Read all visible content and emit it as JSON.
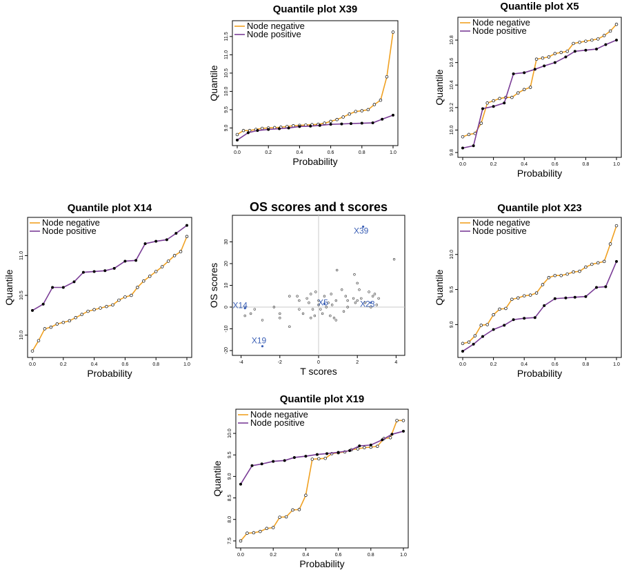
{
  "colors": {
    "negative": "#f0a020",
    "positive": "#7a3c96",
    "os_label": "#3a5fb5",
    "frame": "#000000"
  },
  "chart_data": [
    {
      "id": "X39",
      "type": "line",
      "title": "Quantile plot X39",
      "xlabel": "Probability",
      "ylabel": "Quantile",
      "xlim": [
        0,
        1
      ],
      "ylim": [
        8.65,
        11.8
      ],
      "xticks": [
        "0.0",
        "0.2",
        "0.4",
        "0.6",
        "0.8",
        "1.0"
      ],
      "yticks": [
        "9.0",
        "9.5",
        "10.0",
        "10.5",
        "11.0",
        "11.5"
      ],
      "legend": [
        "Node negative",
        "Node positive"
      ],
      "legend_position": "top-left",
      "series": [
        {
          "name": "Node negative",
          "x": [
            0.0,
            0.04,
            0.08,
            0.12,
            0.16,
            0.2,
            0.24,
            0.28,
            0.32,
            0.36,
            0.4,
            0.44,
            0.48,
            0.52,
            0.56,
            0.6,
            0.64,
            0.68,
            0.72,
            0.76,
            0.8,
            0.84,
            0.88,
            0.92,
            0.96,
            1.0
          ],
          "values": [
            8.82,
            8.93,
            8.93,
            8.96,
            8.99,
            9.0,
            9.01,
            9.02,
            9.04,
            9.06,
            9.07,
            9.08,
            9.09,
            9.1,
            9.13,
            9.18,
            9.23,
            9.3,
            9.38,
            9.45,
            9.47,
            9.5,
            9.64,
            9.76,
            10.4,
            11.62
          ]
        },
        {
          "name": "Node positive",
          "x": [
            0.0,
            0.07,
            0.13,
            0.2,
            0.27,
            0.33,
            0.4,
            0.47,
            0.53,
            0.6,
            0.67,
            0.73,
            0.8,
            0.87,
            0.93,
            1.0
          ],
          "values": [
            8.67,
            8.87,
            8.93,
            8.96,
            8.98,
            9.0,
            9.04,
            9.05,
            9.07,
            9.1,
            9.11,
            9.12,
            9.13,
            9.14,
            9.24,
            9.35
          ]
        }
      ]
    },
    {
      "id": "X5",
      "type": "line",
      "title": "Quantile plot X5",
      "xlabel": "Probability",
      "ylabel": "Quantile",
      "xlim": [
        0,
        1
      ],
      "ylim": [
        9.8,
        10.96
      ],
      "xticks": [
        "0.0",
        "0.2",
        "0.4",
        "0.6",
        "0.8",
        "1.0"
      ],
      "yticks": [
        "9.8",
        "10.0",
        "10.2",
        "10.4",
        "10.6",
        "10.8"
      ],
      "legend": [
        "Node negative",
        "Node positive"
      ],
      "legend_position": "top-left",
      "series": [
        {
          "name": "Node negative",
          "x": [
            0.0,
            0.04,
            0.08,
            0.12,
            0.16,
            0.2,
            0.24,
            0.28,
            0.32,
            0.36,
            0.4,
            0.44,
            0.48,
            0.52,
            0.56,
            0.6,
            0.64,
            0.68,
            0.72,
            0.76,
            0.8,
            0.84,
            0.88,
            0.92,
            0.96,
            1.0
          ],
          "values": [
            9.94,
            9.96,
            9.97,
            10.06,
            10.24,
            10.26,
            10.28,
            10.29,
            10.29,
            10.33,
            10.36,
            10.38,
            10.63,
            10.64,
            10.65,
            10.68,
            10.69,
            10.7,
            10.77,
            10.78,
            10.79,
            10.8,
            10.81,
            10.84,
            10.88,
            10.94
          ]
        },
        {
          "name": "Node positive",
          "x": [
            0.0,
            0.07,
            0.13,
            0.2,
            0.27,
            0.33,
            0.4,
            0.47,
            0.53,
            0.6,
            0.67,
            0.73,
            0.8,
            0.87,
            0.93,
            1.0
          ],
          "values": [
            9.84,
            9.86,
            10.19,
            10.21,
            10.24,
            10.5,
            10.51,
            10.54,
            10.57,
            10.6,
            10.65,
            10.7,
            10.71,
            10.72,
            10.76,
            10.8
          ]
        }
      ]
    },
    {
      "id": "X14",
      "type": "line",
      "title": "Quantile plot X14",
      "xlabel": "Probability",
      "ylabel": "Quantile",
      "xlim": [
        0,
        1
      ],
      "ylim": [
        9.78,
        11.42
      ],
      "xticks": [
        "0.0",
        "0.2",
        "0.4",
        "0.6",
        "0.8",
        "1.0"
      ],
      "yticks": [
        "10.0",
        "10.5",
        "11.0"
      ],
      "legend": [
        "Node negative",
        "Node positive"
      ],
      "legend_position": "top-left",
      "series": [
        {
          "name": "Node negative",
          "x": [
            0.0,
            0.04,
            0.08,
            0.12,
            0.16,
            0.2,
            0.24,
            0.28,
            0.32,
            0.36,
            0.4,
            0.44,
            0.48,
            0.52,
            0.56,
            0.6,
            0.64,
            0.68,
            0.72,
            0.76,
            0.8,
            0.84,
            0.88,
            0.92,
            0.96,
            1.0
          ],
          "values": [
            9.8,
            9.93,
            10.08,
            10.1,
            10.14,
            10.16,
            10.18,
            10.22,
            10.26,
            10.3,
            10.32,
            10.34,
            10.36,
            10.38,
            10.44,
            10.48,
            10.5,
            10.6,
            10.68,
            10.74,
            10.8,
            10.86,
            10.93,
            11.0,
            11.05,
            11.24
          ]
        },
        {
          "name": "Node positive",
          "x": [
            0.0,
            0.07,
            0.13,
            0.2,
            0.27,
            0.33,
            0.4,
            0.47,
            0.53,
            0.6,
            0.67,
            0.73,
            0.8,
            0.87,
            0.93,
            1.0
          ],
          "values": [
            10.31,
            10.39,
            10.6,
            10.6,
            10.67,
            10.79,
            10.8,
            10.81,
            10.84,
            10.93,
            10.94,
            11.15,
            11.18,
            11.2,
            11.28,
            11.38
          ]
        }
      ]
    },
    {
      "id": "OS",
      "type": "scatter",
      "title": "OS scores and t scores",
      "xlabel": "T scores",
      "ylabel": "OS scores",
      "xlim": [
        -4.2,
        4.2
      ],
      "ylim": [
        -20,
        40
      ],
      "xticks": [
        "-4",
        "-2",
        "0",
        "2",
        "4"
      ],
      "yticks": [
        "-20",
        "-10",
        "0",
        "10",
        "20",
        "30"
      ],
      "reference_lines": {
        "x": 0,
        "y": 0
      },
      "labeled_points": [
        {
          "label": "X39",
          "x": 2.3,
          "y": 37
        },
        {
          "label": "X5",
          "x": 0.3,
          "y": 1.5
        },
        {
          "label": "X14",
          "x": -3.8,
          "y": -0.5
        },
        {
          "label": "X23",
          "x": 2.7,
          "y": 2
        },
        {
          "label": "X19",
          "x": -2.9,
          "y": -18
        }
      ],
      "points": [
        [
          -3.8,
          -4
        ],
        [
          -3.5,
          -3
        ],
        [
          -3.3,
          -1
        ],
        [
          -2.9,
          -6
        ],
        [
          -2.3,
          0
        ],
        [
          -2.0,
          -3
        ],
        [
          -2.0,
          -5
        ],
        [
          -1.5,
          -9
        ],
        [
          -1.5,
          5
        ],
        [
          -1.1,
          5
        ],
        [
          -1.0,
          3
        ],
        [
          -1.0,
          -1
        ],
        [
          -0.8,
          -3
        ],
        [
          -0.6,
          4
        ],
        [
          -0.5,
          2
        ],
        [
          -0.4,
          -5
        ],
        [
          -0.4,
          6
        ],
        [
          -0.3,
          -1
        ],
        [
          -0.2,
          -4
        ],
        [
          -0.15,
          7
        ],
        [
          0.0,
          1
        ],
        [
          0.0,
          3
        ],
        [
          0.1,
          -1
        ],
        [
          0.2,
          -3
        ],
        [
          0.3,
          5
        ],
        [
          0.4,
          0
        ],
        [
          0.5,
          2
        ],
        [
          0.6,
          -4
        ],
        [
          0.65,
          6
        ],
        [
          0.7,
          1
        ],
        [
          0.8,
          -5
        ],
        [
          0.9,
          -6
        ],
        [
          0.9,
          3
        ],
        [
          0.95,
          17
        ],
        [
          1.2,
          8
        ],
        [
          1.3,
          -2
        ],
        [
          1.4,
          5
        ],
        [
          1.5,
          3
        ],
        [
          1.5,
          0
        ],
        [
          1.8,
          4
        ],
        [
          1.85,
          15
        ],
        [
          1.9,
          2
        ],
        [
          2.0,
          11
        ],
        [
          2.0,
          3
        ],
        [
          2.1,
          8
        ],
        [
          2.2,
          4
        ],
        [
          2.4,
          2
        ],
        [
          2.6,
          7
        ],
        [
          2.7,
          0
        ],
        [
          2.8,
          5
        ],
        [
          2.9,
          6
        ],
        [
          3.0,
          1
        ],
        [
          3.1,
          4
        ],
        [
          3.9,
          22
        ]
      ]
    },
    {
      "id": "X23",
      "type": "line",
      "title": "Quantile plot X23",
      "xlabel": "Probability",
      "ylabel": "Quantile",
      "xlim": [
        0,
        1
      ],
      "ylim": [
        8.6,
        10.46
      ],
      "xticks": [
        "0.0",
        "0.2",
        "0.4",
        "0.6",
        "0.8",
        "1.0"
      ],
      "yticks": [
        "9.0",
        "9.5",
        "10.0"
      ],
      "legend": [
        "Node negative",
        "Node positive"
      ],
      "legend_position": "top-left",
      "series": [
        {
          "name": "Node negative",
          "x": [
            0.0,
            0.04,
            0.08,
            0.12,
            0.16,
            0.2,
            0.24,
            0.28,
            0.32,
            0.36,
            0.4,
            0.44,
            0.48,
            0.52,
            0.56,
            0.6,
            0.64,
            0.68,
            0.72,
            0.76,
            0.8,
            0.84,
            0.88,
            0.92,
            0.96,
            1.0
          ],
          "values": [
            8.73,
            8.75,
            8.84,
            8.99,
            9.0,
            9.14,
            9.22,
            9.23,
            9.36,
            9.38,
            9.41,
            9.42,
            9.45,
            9.57,
            9.67,
            9.7,
            9.7,
            9.72,
            9.75,
            9.76,
            9.82,
            9.86,
            9.88,
            9.9,
            10.15,
            10.41
          ]
        },
        {
          "name": "Node positive",
          "x": [
            0.0,
            0.07,
            0.13,
            0.2,
            0.27,
            0.33,
            0.4,
            0.47,
            0.53,
            0.6,
            0.67,
            0.73,
            0.8,
            0.87,
            0.93,
            1.0
          ],
          "values": [
            8.62,
            8.72,
            8.83,
            8.93,
            8.99,
            9.07,
            9.09,
            9.1,
            9.27,
            9.37,
            9.38,
            9.39,
            9.4,
            9.53,
            9.54,
            9.9
          ]
        }
      ]
    },
    {
      "id": "X19",
      "type": "line",
      "title": "Quantile plot X19",
      "xlabel": "Probability",
      "ylabel": "Quantile",
      "xlim": [
        0,
        1
      ],
      "ylim": [
        7.45,
        10.45
      ],
      "xticks": [
        "0.0",
        "0.2",
        "0.4",
        "0.6",
        "0.8",
        "1.0"
      ],
      "yticks": [
        "7.5",
        "8.0",
        "8.5",
        "9.0",
        "9.5",
        "10.0"
      ],
      "legend": [
        "Node negative",
        "Node positive"
      ],
      "legend_position": "top-left",
      "series": [
        {
          "name": "Node negative",
          "x": [
            0.0,
            0.04,
            0.08,
            0.12,
            0.16,
            0.2,
            0.24,
            0.28,
            0.32,
            0.36,
            0.4,
            0.44,
            0.48,
            0.52,
            0.56,
            0.6,
            0.64,
            0.68,
            0.72,
            0.76,
            0.8,
            0.84,
            0.88,
            0.92,
            0.96,
            1.0
          ],
          "values": [
            7.5,
            7.68,
            7.69,
            7.72,
            7.79,
            7.81,
            8.05,
            8.06,
            8.22,
            8.23,
            8.56,
            9.4,
            9.41,
            9.42,
            9.53,
            9.55,
            9.57,
            9.62,
            9.64,
            9.67,
            9.68,
            9.7,
            9.88,
            9.9,
            10.3,
            10.3
          ]
        },
        {
          "name": "Node positive",
          "x": [
            0.0,
            0.07,
            0.13,
            0.2,
            0.27,
            0.33,
            0.4,
            0.47,
            0.53,
            0.6,
            0.67,
            0.73,
            0.8,
            0.87,
            0.93,
            1.0
          ],
          "values": [
            8.82,
            9.25,
            9.29,
            9.35,
            9.37,
            9.44,
            9.47,
            9.51,
            9.53,
            9.56,
            9.6,
            9.71,
            9.73,
            9.85,
            9.98,
            10.05
          ]
        }
      ]
    }
  ]
}
